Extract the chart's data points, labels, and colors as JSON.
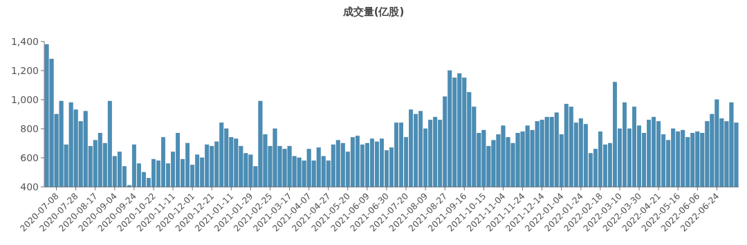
{
  "chart_data": {
    "type": "bar",
    "title": "成交量(亿股)",
    "color": "#4b8db5",
    "categories": [
      null,
      null,
      "2020-07-08",
      null,
      null,
      null,
      "2020-07-28",
      null,
      null,
      null,
      "2020-08-17",
      null,
      null,
      null,
      "2020-09-04",
      null,
      null,
      null,
      "2020-09-24",
      null,
      null,
      null,
      "2020-10-22",
      null,
      null,
      null,
      "2020-11-11",
      null,
      null,
      null,
      "2020-12-01",
      null,
      null,
      null,
      "2020-12-21",
      null,
      null,
      null,
      "2021-01-11",
      null,
      null,
      null,
      "2021-01-29",
      null,
      null,
      null,
      "2021-02-25",
      null,
      null,
      null,
      "2021-03-17",
      null,
      null,
      null,
      "2021-04-07",
      null,
      null,
      null,
      "2021-04-27",
      null,
      null,
      null,
      "2021-05-20",
      null,
      null,
      null,
      "2021-06-09",
      null,
      null,
      null,
      "2021-06-30",
      null,
      null,
      null,
      "2021-07-20",
      null,
      null,
      null,
      "2021-08-09",
      null,
      null,
      null,
      "2021-08-27",
      null,
      null,
      null,
      "2021-09-16",
      null,
      null,
      null,
      "2021-10-15",
      null,
      null,
      null,
      "2021-11-04",
      null,
      null,
      null,
      "2021-11-24",
      null,
      null,
      null,
      "2021-12-14",
      null,
      null,
      null,
      "2022-01-04",
      null,
      null,
      null,
      "2022-01-24",
      null,
      null,
      null,
      "2022-02-18",
      null,
      null,
      null,
      "2022-03-10",
      null,
      null,
      null,
      "2022-03-30",
      null,
      null,
      null,
      "2022-04-21",
      null,
      null,
      null,
      "2022-05-16",
      null,
      null,
      null,
      "2022-06-06",
      null,
      null,
      null,
      "2022-06-24",
      null,
      null,
      null,
      null
    ],
    "values": [
      1380,
      1280,
      900,
      990,
      690,
      980,
      930,
      850,
      920,
      680,
      720,
      770,
      700,
      990,
      610,
      640,
      540,
      410,
      690,
      560,
      500,
      460,
      590,
      580,
      740,
      560,
      640,
      770,
      590,
      700,
      550,
      620,
      600,
      690,
      680,
      710,
      840,
      800,
      740,
      730,
      680,
      630,
      620,
      540,
      990,
      760,
      680,
      800,
      680,
      660,
      680,
      610,
      600,
      580,
      660,
      580,
      670,
      610,
      580,
      690,
      720,
      700,
      640,
      740,
      750,
      690,
      700,
      730,
      710,
      730,
      650,
      670,
      840,
      840,
      740,
      930,
      900,
      920,
      800,
      860,
      880,
      860,
      1020,
      1200,
      1150,
      1180,
      1150,
      1050,
      950,
      770,
      790,
      680,
      720,
      760,
      820,
      740,
      700,
      770,
      780,
      820,
      790,
      850,
      860,
      880,
      880,
      910,
      760,
      970,
      950,
      840,
      870,
      830,
      630,
      660,
      780,
      690,
      700,
      1120,
      800,
      980,
      800,
      950,
      820,
      770,
      860,
      880,
      850,
      760,
      720,
      800,
      780,
      790,
      740,
      770,
      780,
      770,
      850,
      900,
      1000,
      870,
      850,
      980,
      840
    ],
    "ylim": [
      400,
      1400
    ],
    "yticks": [
      {
        "value": 400,
        "label": "400"
      },
      {
        "value": 600,
        "label": "600"
      },
      {
        "value": 800,
        "label": "800"
      },
      {
        "value": 1000,
        "label": "1,000"
      },
      {
        "value": 1200,
        "label": "1,200"
      },
      {
        "value": 1400,
        "label": "1,400"
      }
    ],
    "grid": false
  }
}
